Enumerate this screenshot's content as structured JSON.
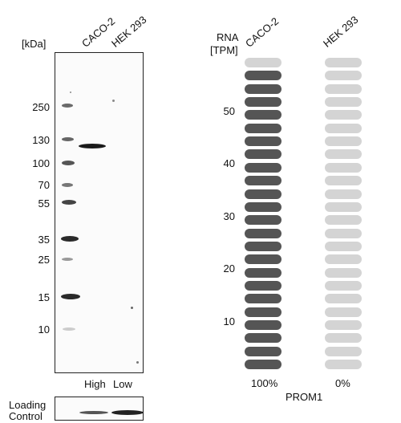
{
  "blot": {
    "kda_label": "[kDa]",
    "lane_labels": [
      "CACO-2",
      "HEK 293"
    ],
    "markers": [
      "250",
      "130",
      "100",
      "70",
      "55",
      "35",
      "25",
      "15",
      "10"
    ],
    "expression_labels": [
      "High",
      "Low"
    ],
    "loading_control_label_line1": "Loading",
    "loading_control_label_line2": "Control"
  },
  "rna": {
    "axis_label_line1": "RNA",
    "axis_label_line2": "[TPM]",
    "columns": [
      "CACO-2",
      "HEK 293"
    ],
    "yticks": [
      "50",
      "40",
      "30",
      "20",
      "10"
    ],
    "percent_labels": [
      "100%",
      "0%"
    ],
    "gene": "PROM1",
    "colors": {
      "dark": "#555555",
      "light": "#d4d4d4"
    }
  }
}
